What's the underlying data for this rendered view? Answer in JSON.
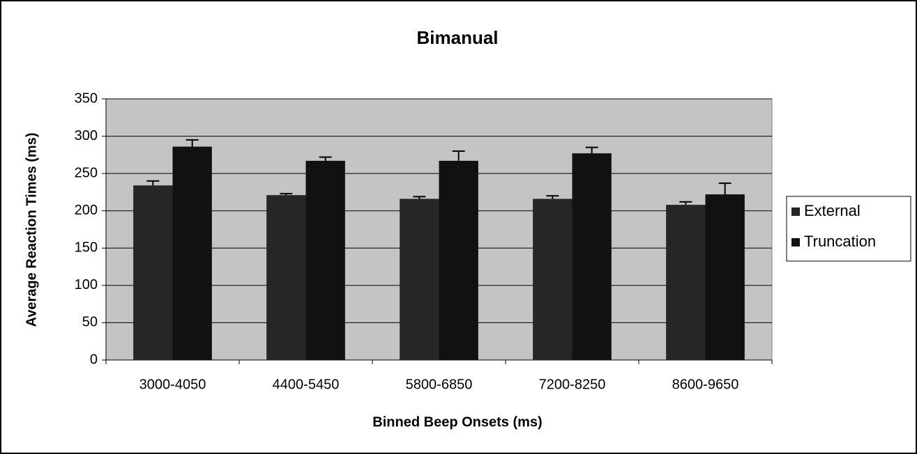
{
  "chart_data": {
    "type": "bar",
    "title": "Bimanual",
    "x_label": "Binned Beep Onsets (ms)",
    "y_label": "Average Reaction Times (ms)",
    "categories": [
      "3000-4050",
      "4400-5450",
      "5800-6850",
      "7200-8250",
      "8600-9650"
    ],
    "series": [
      {
        "name": "External",
        "color": "#262626",
        "values": [
          234,
          221,
          216,
          216,
          208
        ],
        "errors": [
          6,
          2,
          3,
          4,
          4
        ]
      },
      {
        "name": "Truncation",
        "color": "#111111",
        "values": [
          286,
          267,
          267,
          277,
          222
        ],
        "errors": [
          9,
          5,
          13,
          8,
          15
        ]
      }
    ],
    "ylim": [
      0,
      350
    ],
    "yticks": [
      0,
      50,
      100,
      150,
      200,
      250,
      300,
      350
    ],
    "grid": true,
    "legend": "right",
    "plot_background": "#c4c4c4"
  }
}
